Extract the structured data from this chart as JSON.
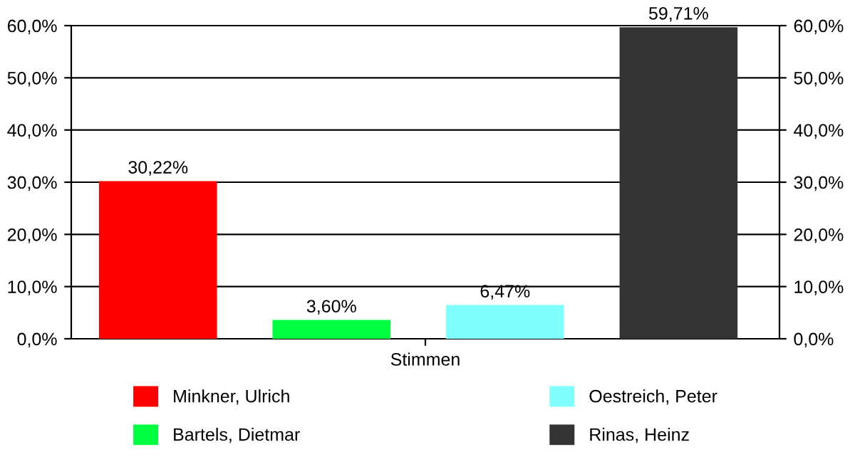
{
  "chart_data": {
    "type": "bar",
    "categories": [
      "Stimmen"
    ],
    "xlabel": null,
    "series": [
      {
        "name": "Minkner, Ulrich",
        "color": "#ff0000",
        "values": [
          30.22
        ],
        "value_labels": [
          "30,22%"
        ]
      },
      {
        "name": "Bartels, Dietmar",
        "color": "#00ff40",
        "values": [
          3.6
        ],
        "value_labels": [
          "3,60%"
        ]
      },
      {
        "name": "Oestreich, Peter",
        "color": "#80ffff",
        "values": [
          6.47
        ],
        "value_labels": [
          "6,47%"
        ]
      },
      {
        "name": "Rinas, Heinz",
        "color": "#333333",
        "values": [
          59.71
        ],
        "value_labels": [
          "59,71%"
        ]
      }
    ],
    "ylim": [
      0,
      60
    ],
    "yticks": [
      {
        "value": 0,
        "label": "0,0%"
      },
      {
        "value": 10,
        "label": "10,0%"
      },
      {
        "value": 20,
        "label": "20,0%"
      },
      {
        "value": 30,
        "label": "30,0%"
      },
      {
        "value": 40,
        "label": "40,0%"
      },
      {
        "value": 50,
        "label": "50,0%"
      },
      {
        "value": 60,
        "label": "60,0%"
      }
    ],
    "grid": "y",
    "legend": "bottom"
  }
}
